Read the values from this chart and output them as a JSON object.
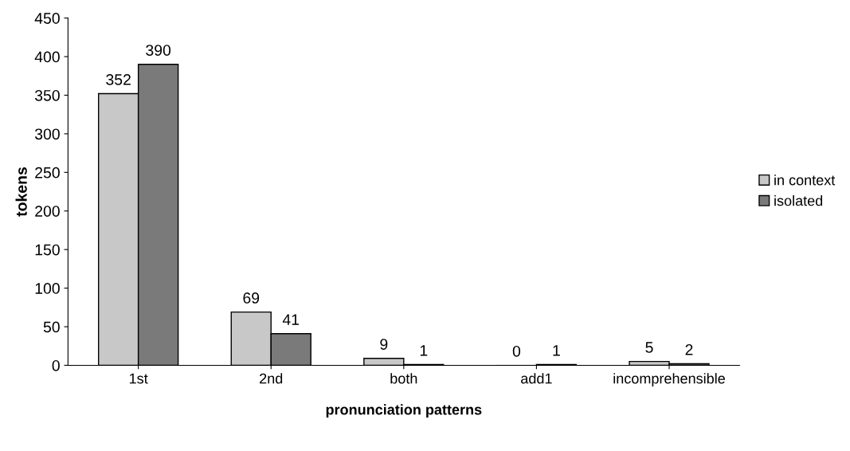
{
  "chart_data": {
    "type": "bar",
    "xlabel": "pronunciation patterns",
    "ylabel": "tokens",
    "categories": [
      "1st",
      "2nd",
      "both",
      "add1",
      "incomprehensible"
    ],
    "series": [
      {
        "name": "in context",
        "color": "#c8c8c8",
        "values": [
          352,
          69,
          9,
          0,
          5
        ]
      },
      {
        "name": "isolated",
        "color": "#7a7a7a",
        "values": [
          390,
          41,
          1,
          1,
          2
        ]
      }
    ],
    "ylim": [
      0,
      450
    ],
    "yticks": [
      0,
      50,
      100,
      150,
      200,
      250,
      300,
      350,
      400,
      450
    ],
    "data_labels": true,
    "grid": false,
    "legend": "right"
  }
}
